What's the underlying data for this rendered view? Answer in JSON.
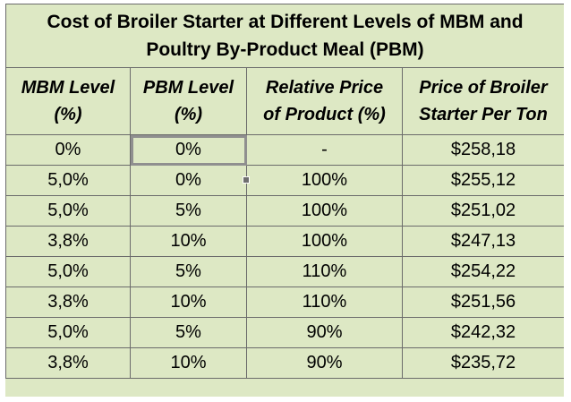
{
  "title": {
    "line1": "Cost of Broiler Starter at Different Levels of MBM and",
    "line2": "Poultry By-Product Meal (PBM)"
  },
  "headers": [
    {
      "line1": "MBM Level",
      "line2": "(%)"
    },
    {
      "line1": "PBM Level",
      "line2": "(%)"
    },
    {
      "line1": "Relative Price",
      "line2": "of Product (%)"
    },
    {
      "line1": "Price of Broiler",
      "line2": "Starter Per Ton"
    }
  ],
  "rows": [
    [
      "0%",
      "0%",
      "-",
      "$258,18"
    ],
    [
      "5,0%",
      "0%",
      "100%",
      "$255,12"
    ],
    [
      "5,0%",
      "5%",
      "100%",
      "$251,02"
    ],
    [
      "3,8%",
      "10%",
      "100%",
      "$247,13"
    ],
    [
      "5,0%",
      "5%",
      "110%",
      "$254,22"
    ],
    [
      "3,8%",
      "10%",
      "110%",
      "$251,56"
    ],
    [
      "5,0%",
      "5%",
      "90%",
      "$242,32"
    ],
    [
      "3,8%",
      "10%",
      "90%",
      "$235,72"
    ]
  ],
  "colors": {
    "cell_fill": "#dde8c4",
    "grid_line": "#6b6b6b",
    "selection_border": "#8f8f8f"
  }
}
